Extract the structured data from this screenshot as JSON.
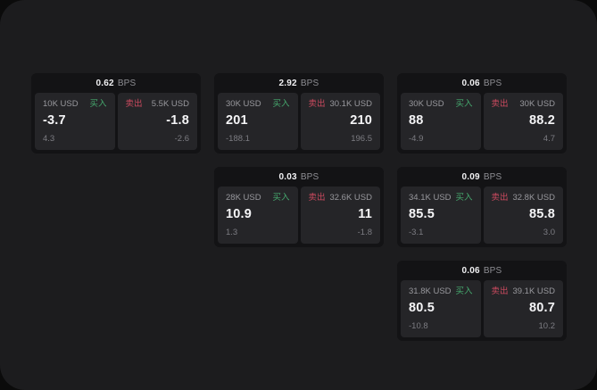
{
  "labels": {
    "bps_suffix": "BPS",
    "buy": "买入",
    "sell": "卖出"
  },
  "colors": {
    "buy_green": "#46a96e",
    "sell_red": "#cc4a5f",
    "panel_bg": "#1c1c1e",
    "card_bg": "#131315",
    "tile_bg": "#252528"
  },
  "cards": [
    {
      "grid": {
        "row": 1,
        "col": 1
      },
      "bps_value": "0.62",
      "buy": {
        "size": "10K USD",
        "value": "-3.7",
        "sub": "4.3"
      },
      "sell": {
        "size": "5.5K USD",
        "value": "-1.8",
        "sub": "-2.6"
      }
    },
    {
      "grid": {
        "row": 1,
        "col": 2
      },
      "bps_value": "2.92",
      "buy": {
        "size": "30K USD",
        "value": "201",
        "sub": "-188.1"
      },
      "sell": {
        "size": "30.1K USD",
        "value": "210",
        "sub": "196.5"
      }
    },
    {
      "grid": {
        "row": 1,
        "col": 3
      },
      "bps_value": "0.06",
      "buy": {
        "size": "30K USD",
        "value": "88",
        "sub": "-4.9"
      },
      "sell": {
        "size": "30K USD",
        "value": "88.2",
        "sub": "4.7"
      }
    },
    {
      "grid": {
        "row": 2,
        "col": 2
      },
      "bps_value": "0.03",
      "buy": {
        "size": "28K USD",
        "value": "10.9",
        "sub": "1.3"
      },
      "sell": {
        "size": "32.6K USD",
        "value": "11",
        "sub": "-1.8"
      }
    },
    {
      "grid": {
        "row": 2,
        "col": 3
      },
      "bps_value": "0.09",
      "buy": {
        "size": "34.1K USD",
        "value": "85.5",
        "sub": "-3.1"
      },
      "sell": {
        "size": "32.8K USD",
        "value": "85.8",
        "sub": "3.0"
      }
    },
    {
      "grid": {
        "row": 3,
        "col": 3
      },
      "bps_value": "0.06",
      "buy": {
        "size": "31.8K USD",
        "value": "80.5",
        "sub": "-10.8"
      },
      "sell": {
        "size": "39.1K USD",
        "value": "80.7",
        "sub": "10.2"
      }
    }
  ]
}
